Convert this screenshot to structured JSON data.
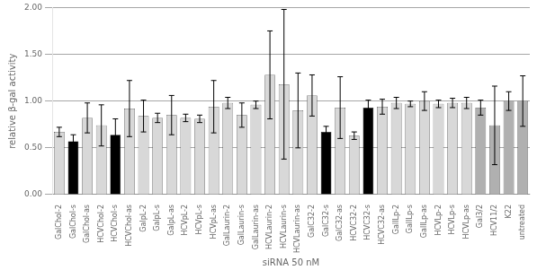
{
  "chart_data": {
    "type": "bar",
    "categories": [
      "GalChol-2",
      "GalChol-s",
      "GalChol-as",
      "HCVChol-2",
      "HCVChol-s",
      "HCVChol-as",
      "GalpL-2",
      "GalpL-s",
      "GalpL-as",
      "HCVpL-2",
      "HCVpL-s",
      "HCVpL-as",
      "GalLaurin-2",
      "GalLaurin-s",
      "GalLaurin-as",
      "HCVLaurin-2",
      "HCVLaurin-s",
      "HCVLaurin-as",
      "GalC32-2",
      "GalC32-s",
      "GalC32-as",
      "HCVC32-2",
      "HCVC32-s",
      "HCVC32-as",
      "GalILp-2",
      "GalILp-s",
      "GalILp-as",
      "HCVLp-2",
      "HCVLp-s",
      "HCVLp-as",
      "Gal3/2",
      "HCV11/2",
      "K22",
      "untreated"
    ],
    "values": [
      0.67,
      0.57,
      0.82,
      0.74,
      0.64,
      0.92,
      0.84,
      0.82,
      0.85,
      0.82,
      0.81,
      0.94,
      0.98,
      0.85,
      0.96,
      1.28,
      1.18,
      0.9,
      1.06,
      0.67,
      0.93,
      0.63,
      0.93,
      0.94,
      0.98,
      0.97,
      1.0,
      0.97,
      0.98,
      0.98,
      0.93,
      0.74,
      1.0,
      1.0
    ],
    "errors": [
      0.05,
      0.07,
      0.16,
      0.22,
      0.17,
      0.3,
      0.17,
      0.05,
      0.21,
      0.04,
      0.04,
      0.28,
      0.06,
      0.13,
      0.04,
      0.47,
      0.8,
      0.4,
      0.22,
      0.06,
      0.33,
      0.04,
      0.08,
      0.08,
      0.06,
      0.03,
      0.1,
      0.04,
      0.05,
      0.06,
      0.08,
      0.42,
      0.1,
      0.27
    ],
    "colors": [
      "#d8d8d8",
      "#000000",
      "#d8d8d8",
      "#d8d8d8",
      "#000000",
      "#d8d8d8",
      "#d8d8d8",
      "#d8d8d8",
      "#d8d8d8",
      "#d8d8d8",
      "#d8d8d8",
      "#d8d8d8",
      "#d8d8d8",
      "#d8d8d8",
      "#d8d8d8",
      "#d8d8d8",
      "#d8d8d8",
      "#d8d8d8",
      "#d8d8d8",
      "#000000",
      "#d8d8d8",
      "#d8d8d8",
      "#000000",
      "#d8d8d8",
      "#d8d8d8",
      "#d8d8d8",
      "#d8d8d8",
      "#d8d8d8",
      "#d8d8d8",
      "#d8d8d8",
      "#b0b0b0",
      "#b0b0b0",
      "#b0b0b0",
      "#b0b0b0"
    ],
    "xlabel": "siRNA 50 nM",
    "ylabel": "relative β-gal activity",
    "ylim": [
      0.0,
      2.0
    ],
    "yticks": [
      {
        "value": 0.0,
        "label": "0.00"
      },
      {
        "value": 0.5,
        "label": "0.50"
      },
      {
        "value": 1.0,
        "label": "1.00"
      },
      {
        "value": 1.5,
        "label": "1.50"
      },
      {
        "value": 2.0,
        "label": "2.00"
      }
    ],
    "grid": true
  }
}
